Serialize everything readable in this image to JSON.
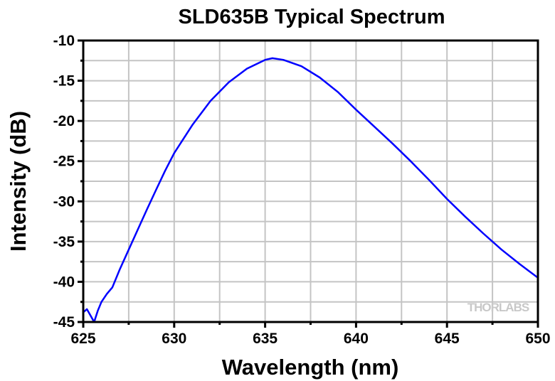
{
  "chart_data": {
    "type": "line",
    "title": "SLD635B Typical Spectrum",
    "xlabel": "Wavelength (nm)",
    "ylabel": "Intensity (dB)",
    "xlim": [
      625,
      650
    ],
    "ylim": [
      -45,
      -10
    ],
    "xticks": [
      625,
      630,
      635,
      640,
      645,
      650
    ],
    "yticks": [
      -10,
      -15,
      -20,
      -25,
      -30,
      -35,
      -40,
      -45
    ],
    "grid": true,
    "watermark": "THORLABS",
    "series": [
      {
        "name": "SLD635B",
        "color": "#0000ff",
        "x": [
          625,
          625.2,
          625.4,
          625.6,
          625.8,
          626,
          626.3,
          626.6,
          627,
          627.5,
          628,
          628.5,
          629,
          629.5,
          630,
          631,
          632,
          633,
          634,
          635,
          635.4,
          636,
          637,
          638,
          639,
          640,
          641,
          642,
          643,
          644,
          645,
          646,
          647,
          648,
          649,
          650
        ],
        "y": [
          -43.8,
          -43.4,
          -44.2,
          -45,
          -43.6,
          -42.5,
          -41.5,
          -40.7,
          -38.5,
          -36,
          -33.5,
          -31,
          -28.6,
          -26.2,
          -24,
          -20.5,
          -17.5,
          -15.2,
          -13.5,
          -12.4,
          -12.2,
          -12.4,
          -13.2,
          -14.6,
          -16.4,
          -18.6,
          -20.7,
          -22.8,
          -25,
          -27.3,
          -29.7,
          -31.9,
          -34,
          -36,
          -37.8,
          -39.5
        ]
      }
    ]
  }
}
